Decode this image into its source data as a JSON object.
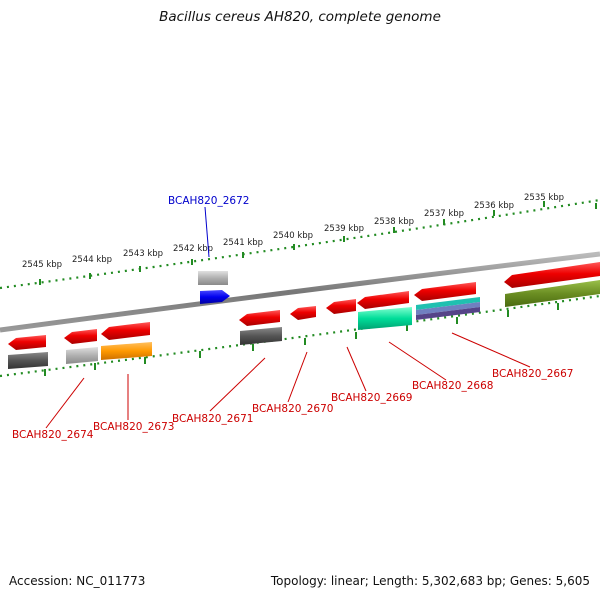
{
  "title": "Bacillus cereus AH820, complete genome",
  "footer": {
    "accession": "Accession: NC_011773",
    "summary": "Topology: linear; Length: 5,302,683 bp; Genes: 5,605"
  },
  "scale_labels": [
    "2545 kbp",
    "2544 kbp",
    "2543 kbp",
    "2542 kbp",
    "2541 kbp",
    "2540 kbp",
    "2539 kbp",
    "2538 kbp",
    "2537 kbp",
    "2536 kbp",
    "2535 kbp"
  ],
  "gene_labels": [
    "BCAH820_2672",
    "BCAH820_2674",
    "BCAH820_2673",
    "BCAH820_2671",
    "BCAH820_2670",
    "BCAH820_2669",
    "BCAH820_2668",
    "BCAH820_2667"
  ],
  "colors": {
    "gene_red": "#ee0000",
    "highlight_blue": "#0000ee",
    "gray": "#b0b0b0",
    "dark_gray": "#555555",
    "orange": "#ff9900",
    "teal": "#00dd99",
    "olive": "#6b8e23",
    "purple": "#6a5acd",
    "scale_green": "#228b22"
  }
}
